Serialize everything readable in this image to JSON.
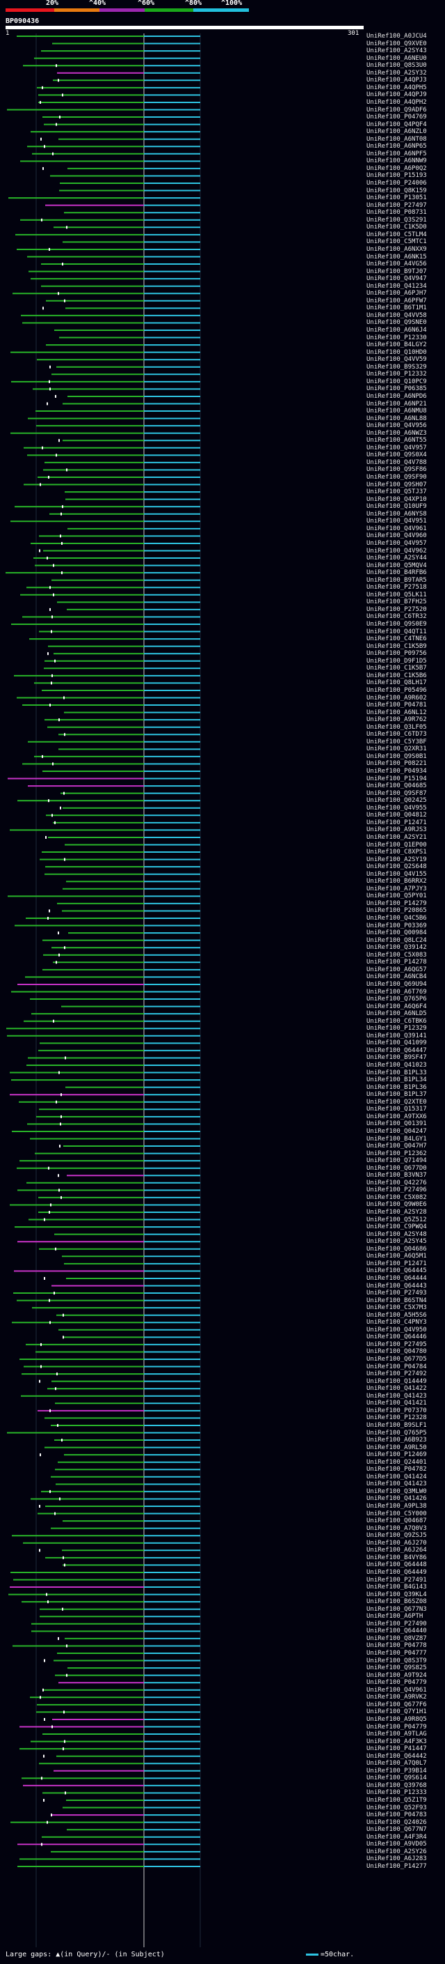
{
  "scale": {
    "labels": [
      "20%",
      "^40%",
      "^60%",
      "^80%",
      "^100%"
    ],
    "colors": [
      "#e8161e",
      "#e87a10",
      "#9c27b0",
      "#1aa71a",
      "#22c0dd"
    ]
  },
  "query": {
    "id": "BP090436",
    "start": "1",
    "end": "301"
  },
  "colors": {
    "green": "#28b428",
    "cyan": "#2ec4e2",
    "magenta": "#c632c6",
    "white": "#ffffff",
    "background": "#02020e"
  },
  "hits": [
    "UniRef100_A0JCU4",
    "UniRef100_Q9XVE0",
    "UniRef100_A2SY43",
    "UniRef100_A6NEU0",
    "UniRef100_Q8S3U0",
    "UniRef100_A2SY32",
    "UniRef100_A4QPJ3",
    "UniRef100_A4QPH5",
    "UniRef100_A4QPJ9",
    "UniRef100_A4QPH2",
    "UniRef100_Q9ADF6",
    "UniRef100_P04769",
    "UniRef100_Q4PQF4",
    "UniRef100_A6NZL0",
    "UniRef100_A6NT08",
    "UniRef100_A6NP65",
    "UniRef100_A6NPF5",
    "UniRef100_A6NNW9",
    "UniRef100_A6P0Q2",
    "UniRef100_P15193",
    "UniRef100_P24006",
    "UniRef100_Q8K159",
    "UniRef100_P13051",
    "UniRef100_P27497",
    "UniRef100_P08731",
    "UniRef100_Q3S291",
    "UniRef100_C1K5D0",
    "UniRef100_C5TLM4",
    "UniRef100_C5MTC1",
    "UniRef100_A6NXX9",
    "UniRef100_A6NK15",
    "UniRef100_A4VG56",
    "UniRef100_B9TJ07",
    "UniRef100_Q4V947",
    "UniRef100_Q41234",
    "UniRef100_A6PJH7",
    "UniRef100_A6PFW7",
    "UniRef100_B6T1M1",
    "UniRef100_Q4VV58",
    "UniRef100_Q9SNE0",
    "UniRef100_A6N6J4",
    "UniRef100_P12330",
    "UniRef100_B4LGY2",
    "UniRef100_Q10HD0",
    "UniRef100_Q4VV59",
    "UniRef100_B9S329",
    "UniRef100_P12332",
    "UniRef100_Q10PC9",
    "UniRef100_P06385",
    "UniRef100_A6NPD6",
    "UniRef100_A6NP21",
    "UniRef100_A6NMU8",
    "UniRef100_A6NL88",
    "UniRef100_Q4V956",
    "UniRef100_A6NWZ3",
    "UniRef100_A6NT55",
    "UniRef100_Q4V957",
    "UniRef100_Q9S0X4",
    "UniRef100_Q4V788",
    "UniRef100_Q9SF86",
    "UniRef100_Q9SF90",
    "UniRef100_Q9SH07",
    "UniRef100_Q5TJ37",
    "UniRef100_Q4XP10",
    "UniRef100_Q10UF9",
    "UniRef100_A6NYS8",
    "UniRef100_Q4V951",
    "UniRef100_Q4V961",
    "UniRef100_Q4V960",
    "UniRef100_Q4V957",
    "UniRef100_Q4V962",
    "UniRef100_A2SY44",
    "UniRef100_Q5MQV4",
    "UniRef100_B4RFB6",
    "UniRef100_B9TAR5",
    "UniRef100_P27518",
    "UniRef100_Q5LK11",
    "UniRef100_B7FH25",
    "UniRef100_P27520",
    "UniRef100_C6TR32",
    "UniRef100_Q9S0E9",
    "UniRef100_Q4QT11",
    "UniRef100_C4TNE6",
    "UniRef100_C1K5B9",
    "UniRef100_P09756",
    "UniRef100_D9F1D5",
    "UniRef100_C1K5B7",
    "UniRef100_C1K5B6",
    "UniRef100_Q8LH17",
    "UniRef100_P05496",
    "UniRef100_A9R602",
    "UniRef100_P04781",
    "UniRef100_A6NL12",
    "UniRef100_A9R762",
    "UniRef100_Q3LF05",
    "UniRef100_C6TD73",
    "UniRef100_C5Y3BF",
    "UniRef100_Q2XR31",
    "UniRef100_Q9S0B1",
    "UniRef100_P08221",
    "UniRef100_P04934",
    "UniRef100_P15194",
    "UniRef100_Q04685",
    "UniRef100_Q9SF87",
    "UniRef100_Q02425",
    "UniRef100_Q4V955",
    "UniRef100_Q04812",
    "UniRef100_P12471",
    "UniRef100_A9RJS3",
    "UniRef100_A2SY21",
    "UniRef100_Q1EP00",
    "UniRef100_C8XPS1",
    "UniRef100_A2SY19",
    "UniRef100_Q2S648",
    "UniRef100_Q4V155",
    "UniRef100_B6RRX2",
    "UniRef100_A7PJY3",
    "UniRef100_Q5PY01",
    "UniRef100_P14279",
    "UniRef100_P20865",
    "UniRef100_Q4C5B6",
    "UniRef100_P03369",
    "UniRef100_Q00984",
    "UniRef100_Q8LC24",
    "UniRef100_Q39142",
    "UniRef100_C5X083",
    "UniRef100_P14278",
    "UniRef100_A6QG57",
    "UniRef100_A6NCB4",
    "UniRef100_Q69U94",
    "UniRef100_A6T769",
    "UniRef100_Q765P6",
    "UniRef100_A6Q6F4",
    "UniRef100_A6NLD5",
    "UniRef100_C6TBK6",
    "UniRef100_P12329",
    "UniRef100_Q39141",
    "UniRef100_Q41099",
    "UniRef100_Q64447",
    "UniRef100_B9SF47",
    "UniRef100_Q41023",
    "UniRef100_B1PL33",
    "UniRef100_B1PL34",
    "UniRef100_B1PL36",
    "UniRef100_B1PL37",
    "UniRef100_Q2XTE0",
    "UniRef100_Q15317",
    "UniRef100_A9TXX6",
    "UniRef100_Q01391",
    "UniRef100_Q04247",
    "UniRef100_B4LGY1",
    "UniRef100_Q047H7",
    "UniRef100_P12362",
    "UniRef100_Q71494",
    "UniRef100_Q677D0",
    "UniRef100_B3VN37",
    "UniRef100_Q42276",
    "UniRef100_P27496",
    "UniRef100_C5X082",
    "UniRef100_Q9W0E6",
    "UniRef100_A2SY28",
    "UniRef100_Q5Z512",
    "UniRef100_C9PWQ4",
    "UniRef100_A2SY48",
    "UniRef100_A2SY45",
    "UniRef100_Q04686",
    "UniRef100_A6Q5M1",
    "UniRef100_P12471",
    "UniRef100_Q64445",
    "UniRef100_Q64444",
    "UniRef100_Q64443",
    "UniRef100_P27493",
    "UniRef100_B6STN4",
    "UniRef100_C5X7M3",
    "UniRef100_A5H5S6",
    "UniRef100_C4PNY3",
    "UniRef100_Q4V950",
    "UniRef100_Q64446",
    "UniRef100_P27495",
    "UniRef100_Q04780",
    "UniRef100_Q677D5",
    "UniRef100_P04784",
    "UniRef100_P27492",
    "UniRef100_Q14449",
    "UniRef100_Q41422",
    "UniRef100_Q41423",
    "UniRef100_Q41421",
    "UniRef100_P07370",
    "UniRef100_P12328",
    "UniRef100_B9SLF1",
    "UniRef100_Q765P5",
    "UniRef100_A6B923",
    "UniRef100_A9RL50",
    "UniRef100_P12469",
    "UniRef100_Q24401",
    "UniRef100_P04782",
    "UniRef100_Q41424",
    "UniRef100_Q41423",
    "UniRef100_Q3MLW0",
    "UniRef100_Q41426",
    "UniRef100_A9PL38",
    "UniRef100_C5Y000",
    "UniRef100_Q04687",
    "UniRef100_A7Q0V3",
    "UniRef100_Q9ZSJ5",
    "UniRef100_A6J270",
    "UniRef100_A6J264",
    "UniRef100_B4VY86",
    "UniRef100_Q64448",
    "UniRef100_Q64449",
    "UniRef100_P27491",
    "UniRef100_B4G143",
    "UniRef100_Q39KL4",
    "UniRef100_B6SZ08",
    "UniRef100_Q677N3",
    "UniRef100_A6PTH",
    "UniRef100_P27490",
    "UniRef100_Q64440",
    "UniRef100_Q8VZ87",
    "UniRef100_P04778",
    "UniRef100_P04777",
    "UniRef100_Q8S3T9",
    "UniRef100_Q9S825",
    "UniRef100_A9T924",
    "UniRef100_P04779",
    "UniRef100_Q4V961",
    "UniRef100_A9RVK2",
    "UniRef100_Q677F6",
    "UniRef100_Q7Y1H1",
    "UniRef100_A9R8Q5",
    "UniRef100_P04779",
    "UniRef100_A9TLAG",
    "UniRef100_A4F3K3",
    "UniRef100_P41447",
    "UniRef100_Q64442",
    "UniRef100_A7Q0L7",
    "UniRef100_P39B14",
    "UniRef100_Q9S614",
    "UniRef100_Q39768",
    "UniRef100_P12333",
    "UniRef100_Q5Z1T9",
    "UniRef100_Q52F93",
    "UniRef100_P04783",
    "UniRef100_Q24026",
    "UniRef100_Q677N7",
    "UniRef100_A4F3R4",
    "UniRef100_A9VD05",
    "UniRef100_A2SY26",
    "UniRef100_A6J283",
    "UniRef100_P14277"
  ],
  "legend": {
    "text": "Large gaps: ▲(in Query)/- (in Subject)",
    "scale": "=50char."
  }
}
